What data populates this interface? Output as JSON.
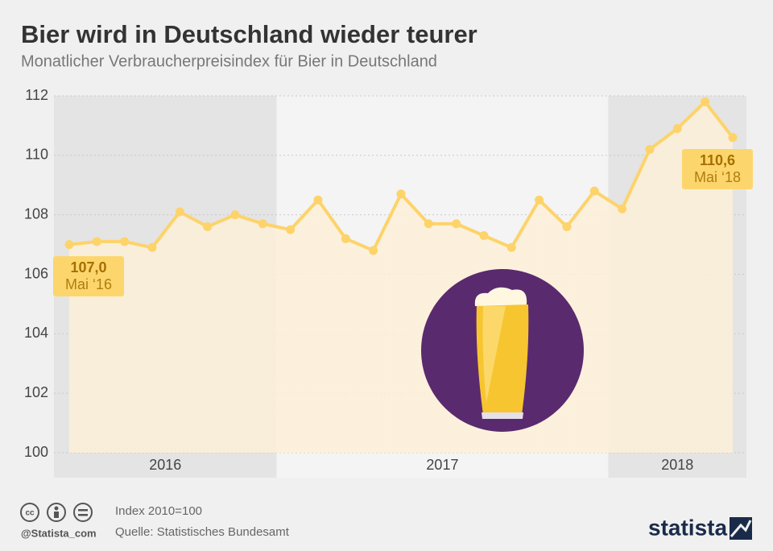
{
  "chart_data": {
    "type": "area",
    "title": "Bier wird in Deutschland wieder teurer",
    "subtitle": "Monatlicher Verbraucherpreisindex für Bier in Deutschland",
    "categories": [
      "2016",
      "2016",
      "2016",
      "2016",
      "2016",
      "2016",
      "2016",
      "2016",
      "2017",
      "2017",
      "2017",
      "2017",
      "2017",
      "2017",
      "2017",
      "2017",
      "2017",
      "2017",
      "2017",
      "2017",
      "2018",
      "2018",
      "2018",
      "2018",
      "2018"
    ],
    "series": [
      {
        "name": "Verbraucherpreisindex Bier",
        "color": "#fdd36a",
        "values": [
          107.0,
          107.1,
          107.1,
          106.9,
          108.1,
          107.6,
          108.0,
          107.7,
          107.5,
          108.5,
          107.2,
          106.8,
          108.7,
          107.7,
          107.7,
          107.3,
          106.9,
          108.5,
          107.6,
          108.8,
          108.2,
          110.2,
          110.9,
          111.8,
          110.6
        ],
        "value_labels": [
          "107,0",
          null,
          null,
          null,
          null,
          null,
          null,
          null,
          null,
          null,
          null,
          null,
          null,
          null,
          null,
          null,
          null,
          null,
          null,
          null,
          null,
          null,
          null,
          null,
          "110,6"
        ],
        "date_labels": [
          "Mai ‘16",
          null,
          null,
          null,
          null,
          null,
          null,
          null,
          null,
          null,
          null,
          null,
          null,
          null,
          null,
          null,
          null,
          null,
          null,
          null,
          null,
          null,
          null,
          null,
          "Mai ‘18"
        ]
      }
    ],
    "ylim": [
      100,
      112
    ],
    "yticks": [
      100,
      102,
      104,
      106,
      108,
      110,
      112
    ],
    "grid": true,
    "note": "Index 2010=100",
    "source": "Quelle: Statistisches Bundesamt",
    "handle": "@Statista_com",
    "brand": "statista"
  }
}
